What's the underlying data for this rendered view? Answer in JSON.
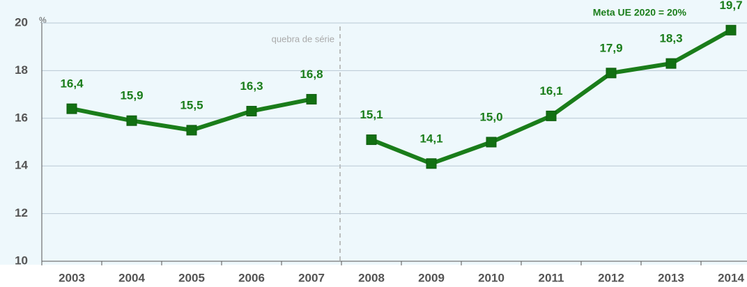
{
  "chart_data": {
    "type": "line",
    "y_label": "%",
    "annotations": [
      "quebra de série",
      "Meta UE 2020 = 20%"
    ],
    "categories": [
      "2003",
      "2004",
      "2005",
      "2006",
      "2007",
      "2008",
      "2009",
      "2010",
      "2011",
      "2012",
      "2013",
      "2014"
    ],
    "series": [
      {
        "color": "#1a7d1a",
        "values": [
          16.4,
          15.9,
          15.5,
          16.3,
          16.8,
          null,
          null,
          null,
          null,
          null,
          null,
          null
        ],
        "value_labels": [
          "16,4",
          "15,9",
          "15,5",
          "16,3",
          "16,8",
          null,
          null,
          null,
          null,
          null,
          null,
          null
        ]
      },
      {
        "color": "#1a7d1a",
        "values": [
          null,
          null,
          null,
          null,
          null,
          15.1,
          14.1,
          15.0,
          16.1,
          17.9,
          18.3,
          19.7
        ],
        "value_labels": [
          null,
          null,
          null,
          null,
          null,
          "15,1",
          "14,1",
          "15,0",
          "16,1",
          "17,9",
          "18,3",
          "19,7"
        ]
      }
    ],
    "ylim": [
      10,
      20
    ],
    "yticks": [
      10,
      12,
      14,
      16,
      18,
      20
    ],
    "grid": true
  }
}
